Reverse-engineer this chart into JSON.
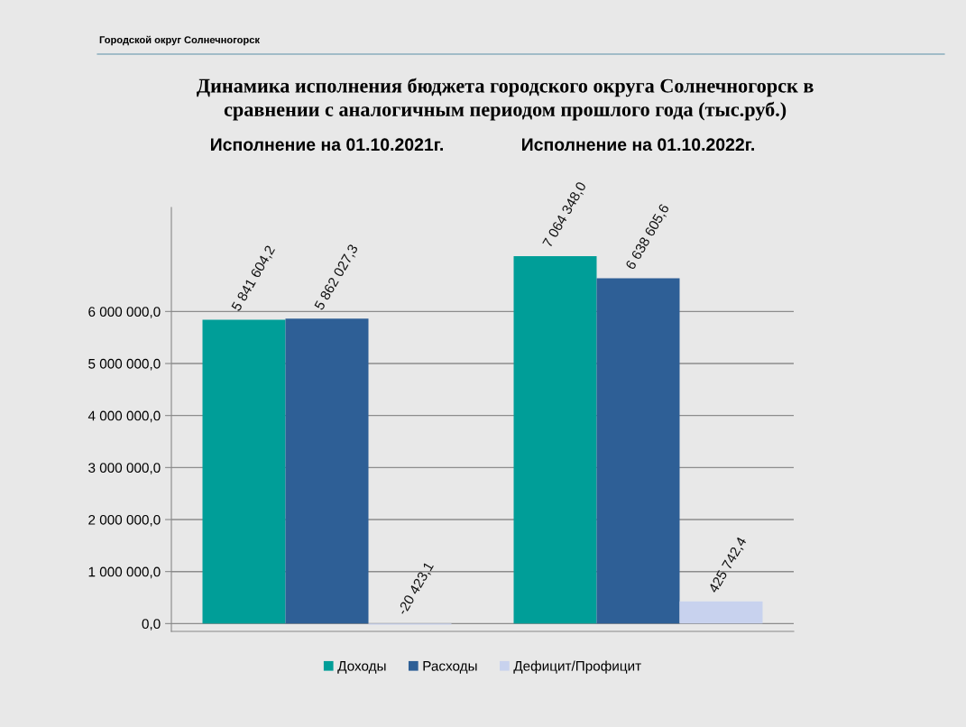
{
  "chart_data": {
    "type": "bar",
    "title": "Динамика исполнения бюджета городского округа Солнечногорск в\nсравнении с аналогичным периодом прошлого года (тыс.руб.)",
    "annotations": [
      "Городской округ Солнечногорск"
    ],
    "categories": [
      "Исполнение на 01.10.2021г.",
      "Исполнение на 01.10.2022г."
    ],
    "series": [
      {
        "name": "Доходы",
        "color": "#009e98",
        "values": [
          5841604.2,
          7064348.0
        ],
        "value_labels": [
          "5 841 604,2",
          "7 064 348,0"
        ]
      },
      {
        "name": "Расходы",
        "color": "#2e5f96",
        "values": [
          5862027.3,
          6638605.6
        ],
        "value_labels": [
          "5 862 027,3",
          "6 638 605,6"
        ]
      },
      {
        "name": "Дефицит/Профицит",
        "color": "#c8d2ee",
        "values": [
          -20423.1,
          425742.4
        ],
        "value_labels": [
          "-20 423,1",
          "425 742,4"
        ]
      }
    ],
    "ylim": [
      -150000,
      8000000
    ],
    "yticks": [
      {
        "value": 0,
        "label": "0,0"
      },
      {
        "value": 1000000,
        "label": "1 000 000,0"
      },
      {
        "value": 2000000,
        "label": "2 000 000,0"
      },
      {
        "value": 3000000,
        "label": "3 000 000,0"
      },
      {
        "value": 4000000,
        "label": "4 000 000,0"
      },
      {
        "value": 5000000,
        "label": "5 000 000,0"
      },
      {
        "value": 6000000,
        "label": "6 000 000,0"
      }
    ],
    "grid": "y",
    "legend": "bottom"
  }
}
